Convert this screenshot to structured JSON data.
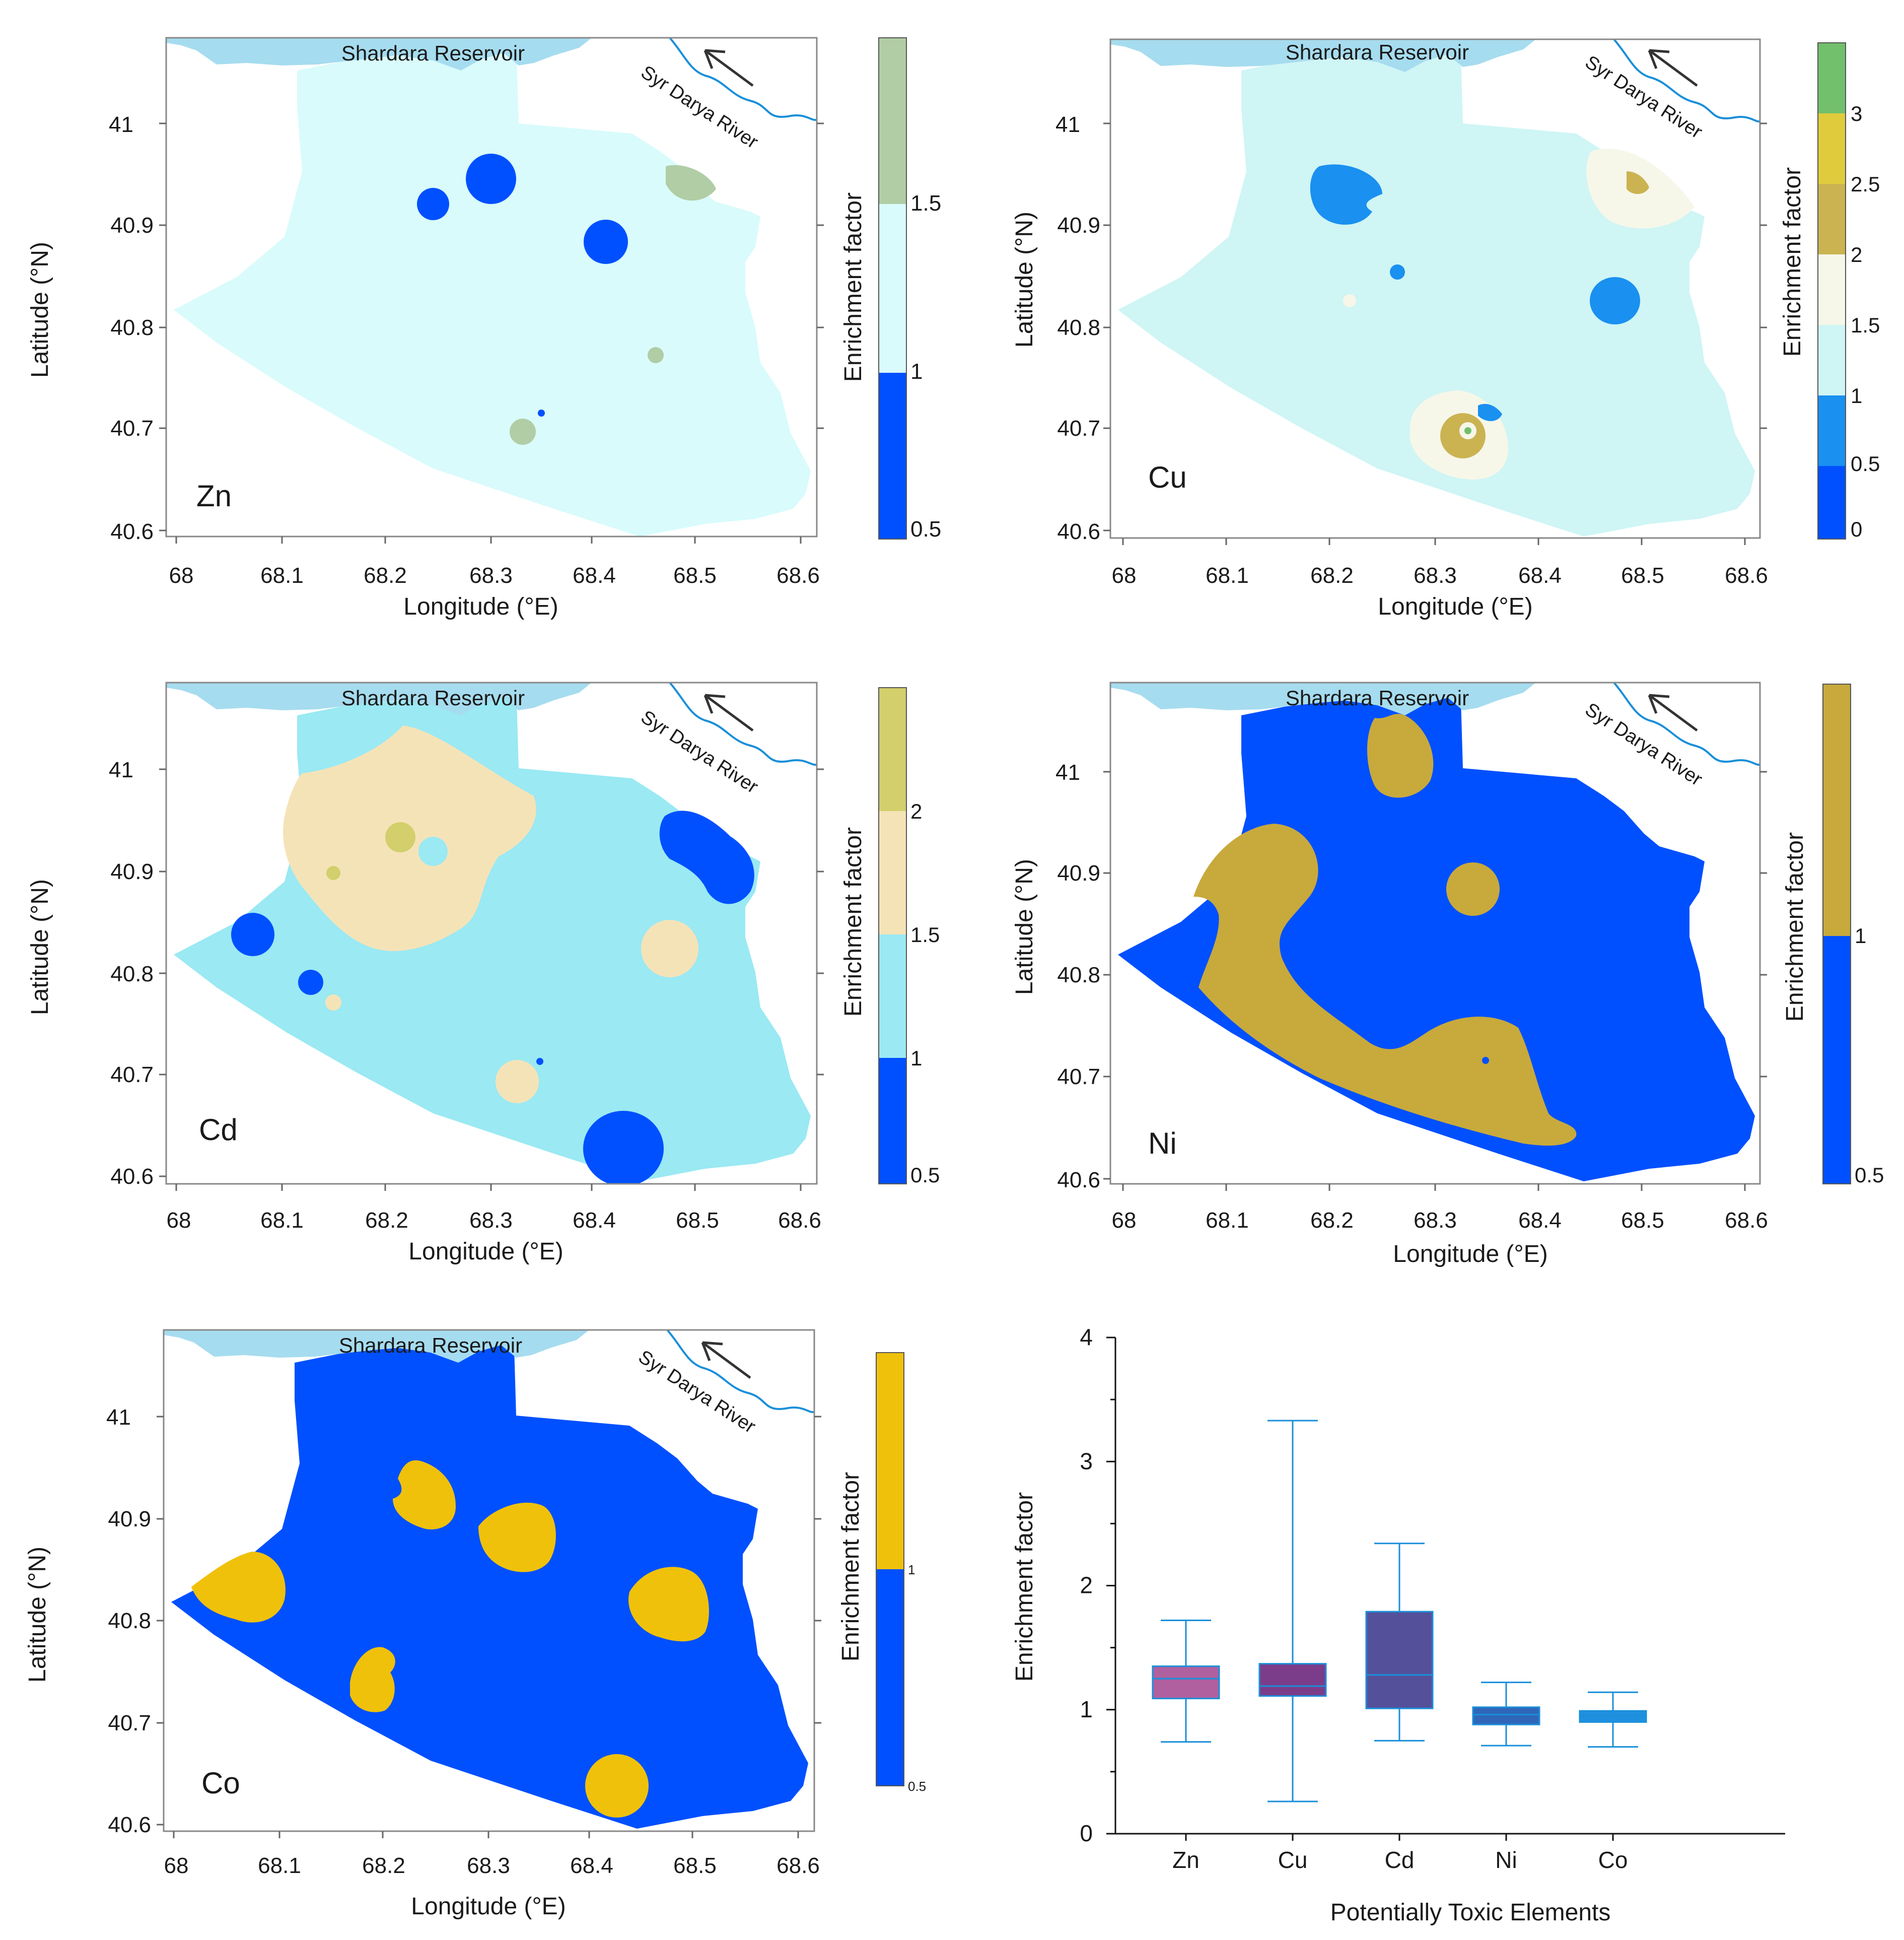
{
  "figure": {
    "reservoir_label": "Shardara Reservoir",
    "river_label": "Syr Darya River",
    "x_axis_label": "Longitude (°E)",
    "y_axis_label": "Latitude (°N)",
    "colorbar_label": "Enrichment factor",
    "x_ticks": [
      "68",
      "68.1",
      "68.2",
      "68.3",
      "68.4",
      "68.5",
      "68.6"
    ],
    "y_ticks": [
      "41",
      "40.9",
      "40.8",
      "40.7",
      "40.6"
    ]
  },
  "colors": {
    "reservoir": "#a6dcef",
    "river": "#1a8fd9",
    "blue": "#0050ff"
  },
  "panels": [
    {
      "element": "Zn",
      "colorbar_ticks": [
        "1.5",
        "1",
        "0.5"
      ],
      "colorbar_colors": [
        "#b1cda5",
        "#d9fbfb",
        "#0050ff"
      ]
    },
    {
      "element": "Cu",
      "colorbar_ticks": [
        "3",
        "2.5",
        "2",
        "1.5",
        "1",
        "0.5",
        "0"
      ],
      "colorbar_colors": [
        "#72bf6c",
        "#e0cb3c",
        "#cbb352",
        "#f6f7e9",
        "#cff5f5",
        "#1a90f0",
        "#0050ff"
      ]
    },
    {
      "element": "Cd",
      "colorbar_ticks": [
        "2",
        "1.5",
        "1",
        "0.5"
      ],
      "colorbar_colors": [
        "#d2cf6c",
        "#f5e3b8",
        "#9ae9f3",
        "#0050ff"
      ]
    },
    {
      "element": "Ni",
      "colorbar_ticks": [
        "1",
        "0.5"
      ],
      "colorbar_colors": [
        "#c8a93c",
        "#0050ff"
      ]
    },
    {
      "element": "Co",
      "colorbar_ticks": [
        "1",
        "0.5"
      ],
      "colorbar_colors": [
        "#f0c10a",
        "#0050ff"
      ]
    }
  ],
  "chart_data": {
    "type": "box",
    "title": "",
    "xlabel": "Potentially Toxic Elements",
    "ylabel": "Enrichment factor",
    "ylim": [
      0,
      4
    ],
    "y_ticks": [
      "0",
      "1",
      "2",
      "3",
      "4"
    ],
    "categories": [
      "Zn",
      "Cu",
      "Cd",
      "Ni",
      "Co"
    ],
    "series": [
      {
        "name": "Zn",
        "min": 0.74,
        "q1": 1.09,
        "median": 1.25,
        "q3": 1.35,
        "max": 1.72,
        "fill": "#b0609f"
      },
      {
        "name": "Cu",
        "min": 0.26,
        "q1": 1.11,
        "median": 1.19,
        "q3": 1.37,
        "max": 3.33,
        "fill": "#7b3d8a"
      },
      {
        "name": "Cd",
        "min": 0.75,
        "q1": 1.01,
        "median": 1.28,
        "q3": 1.79,
        "max": 2.34,
        "fill": "#55509a"
      },
      {
        "name": "Ni",
        "min": 0.71,
        "q1": 0.88,
        "median": 0.96,
        "q3": 1.02,
        "max": 1.22,
        "fill": "#2f66b9"
      },
      {
        "name": "Co",
        "min": 0.7,
        "q1": 0.9,
        "median": 0.95,
        "q3": 0.99,
        "max": 1.14,
        "fill": "#1f90e0"
      }
    ]
  }
}
